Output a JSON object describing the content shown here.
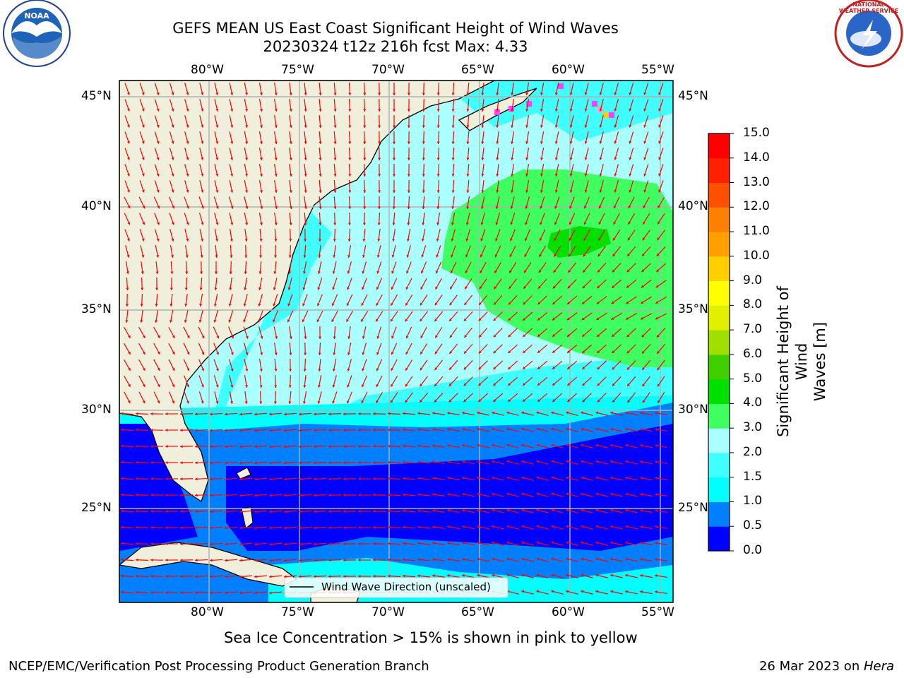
{
  "header": {
    "title_line1": "GEFS MEAN US East Coast Significant Height of Wind Waves",
    "title_line2": "20230324 t12z 216h fcst   Max: 4.33"
  },
  "logos": {
    "noaa_text": "NOAA",
    "nws_ring_text": "NATIONAL WEATHER SERVICE"
  },
  "map": {
    "lon_labels": [
      "80°W",
      "75°W",
      "70°W",
      "65°W",
      "60°W",
      "55°W"
    ],
    "lat_labels": [
      "45°N",
      "40°N",
      "35°N",
      "30°N",
      "25°N"
    ],
    "legend_label": "Wind Wave Direction (unscaled)"
  },
  "colorbar": {
    "label_line1": "Significant Height of Wind",
    "label_line2": "Waves [m]",
    "ticks": [
      "0.0",
      "0.5",
      "1.0",
      "1.5",
      "2.0",
      "3.0",
      "4.0",
      "5.0",
      "6.0",
      "7.0",
      "8.0",
      "9.0",
      "10.0",
      "11.0",
      "12.0",
      "13.0",
      "14.0",
      "15.0"
    ],
    "colors": [
      "#0000ff",
      "#0080ff",
      "#00ffff",
      "#40ffff",
      "#aaffff",
      "#40ff60",
      "#00e000",
      "#40d000",
      "#a0e000",
      "#e0f000",
      "#ffff00",
      "#ffd000",
      "#ffa000",
      "#ff8000",
      "#ff5000",
      "#ff2000",
      "#ff0000"
    ]
  },
  "footer": {
    "sea_ice_note": "Sea Ice Concentration > 15% is shown in pink to yellow",
    "branch": "NCEP/EMC/Verification Post Processing Product Generation Branch",
    "date_prefix": "26 Mar 2023 on ",
    "machine": "Hera"
  }
}
